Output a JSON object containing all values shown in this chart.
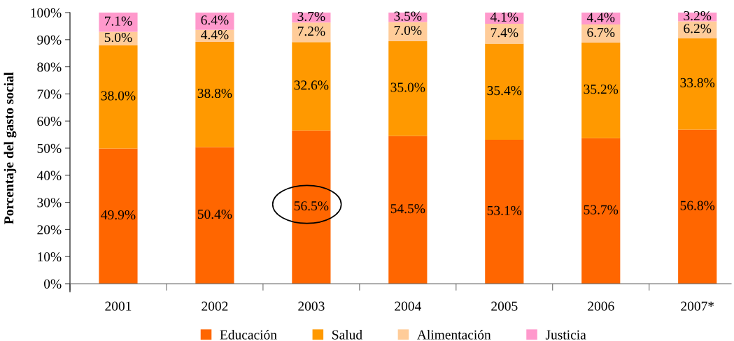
{
  "chart_data": {
    "type": "bar",
    "stacked": true,
    "ylabel": "Porcentaje del gasto social",
    "categories": [
      "2001",
      "2002",
      "2003",
      "2004",
      "2005",
      "2006",
      "2007*"
    ],
    "series": [
      {
        "name": "Educación",
        "color": "#ff6600",
        "values": [
          49.9,
          50.4,
          56.5,
          54.5,
          53.1,
          53.7,
          56.8
        ],
        "value_labels": [
          "49.9%",
          "50.4%",
          "56.5%",
          "54.5%",
          "53.1%",
          "53.7%",
          "56.8%"
        ]
      },
      {
        "name": "Salud",
        "color": "#ff9900",
        "values": [
          38.0,
          38.8,
          32.6,
          35.0,
          35.4,
          35.2,
          33.8
        ],
        "value_labels": [
          "38.0%",
          "38.8%",
          "32.6%",
          "35.0%",
          "35.4%",
          "35.2%",
          "33.8%"
        ]
      },
      {
        "name": "Alimentación",
        "color": "#ffcc99",
        "values": [
          5.0,
          4.4,
          7.2,
          7.0,
          7.4,
          6.7,
          6.2
        ],
        "value_labels": [
          "5.0%",
          "4.4%",
          "7.2%",
          "7.0%",
          "7.4%",
          "6.7%",
          "6.2%"
        ]
      },
      {
        "name": "Justicia",
        "color": "#ff99cc",
        "values": [
          7.1,
          6.4,
          3.7,
          3.5,
          4.1,
          4.4,
          3.2
        ],
        "value_labels": [
          "7.1%",
          "6.4%",
          "3.7%",
          "3.5%",
          "4.1%",
          "4.4%",
          "3.2%"
        ]
      }
    ],
    "ylim": [
      0,
      100
    ],
    "yticks": [
      {
        "value": 0,
        "label": "0%"
      },
      {
        "value": 10,
        "label": "10%"
      },
      {
        "value": 20,
        "label": "20%"
      },
      {
        "value": 30,
        "label": "30%"
      },
      {
        "value": 40,
        "label": "40%"
      },
      {
        "value": 50,
        "label": "50%"
      },
      {
        "value": 60,
        "label": "60%"
      },
      {
        "value": 70,
        "label": "70%"
      },
      {
        "value": 80,
        "label": "80%"
      },
      {
        "value": 90,
        "label": "90%"
      },
      {
        "value": 100,
        "label": "100%"
      }
    ],
    "grid": false,
    "legend": "bottom"
  }
}
